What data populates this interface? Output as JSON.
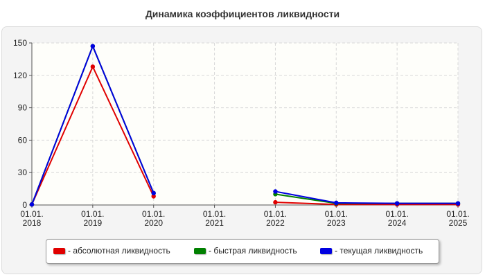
{
  "chart_data": {
    "type": "line",
    "title": "Динамика коэффициентов ликвидности",
    "xlabel": "",
    "ylabel": "",
    "categories": [
      "01.01.\n2018",
      "01.01.\n2019",
      "01.01.\n2020",
      "01.01.\n2021",
      "01.01.\n2022",
      "01.01.\n2023",
      "01.01.\n2024",
      "01.01.\n2025"
    ],
    "ylim": [
      0,
      150
    ],
    "yticks": [
      0,
      30,
      60,
      90,
      120,
      150
    ],
    "grid": true,
    "legend_position": "bottom",
    "series": [
      {
        "name": "- абсолютная ликвидность",
        "color": "#e00000",
        "values": [
          0.5,
          128,
          8,
          null,
          2.5,
          0.5,
          0.5,
          0.5
        ]
      },
      {
        "name": "- быстрая ликвидность",
        "color": "#008000",
        "values": [
          0.5,
          147,
          11,
          null,
          10,
          1.5,
          1.5,
          1.5
        ]
      },
      {
        "name": "- текущая ликвидность",
        "color": "#0000e0",
        "values": [
          0.5,
          147,
          11,
          null,
          12.5,
          2,
          1.5,
          1.5
        ]
      }
    ]
  }
}
